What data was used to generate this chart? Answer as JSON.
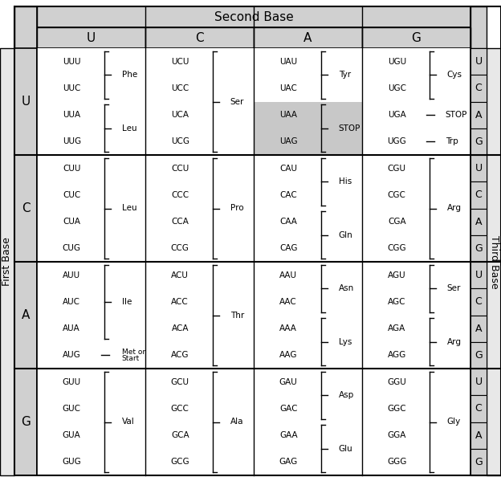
{
  "title": "Second Base",
  "first_base_label": "First Base",
  "third_base_label": "Third Base",
  "second_bases": [
    "U",
    "C",
    "A",
    "G"
  ],
  "first_bases": [
    "U",
    "C",
    "A",
    "G"
  ],
  "third_bases": [
    "U",
    "C",
    "A",
    "G"
  ],
  "codon_data": {
    "UU": [
      {
        "codon": "UUU",
        "aa": "Phe",
        "group": 1
      },
      {
        "codon": "UUC",
        "aa": "Phe",
        "group": 1
      },
      {
        "codon": "UUA",
        "aa": "Leu",
        "group": 2
      },
      {
        "codon": "UUG",
        "aa": "Leu",
        "group": 2
      }
    ],
    "UC": [
      {
        "codon": "UCU",
        "aa": "Ser",
        "group": 1
      },
      {
        "codon": "UCC",
        "aa": "Ser",
        "group": 1
      },
      {
        "codon": "UCA",
        "aa": "Ser",
        "group": 1
      },
      {
        "codon": "UCG",
        "aa": "Ser",
        "group": 1
      }
    ],
    "UA": [
      {
        "codon": "UAU",
        "aa": "Tyr",
        "group": 1
      },
      {
        "codon": "UAC",
        "aa": "Tyr",
        "group": 1
      },
      {
        "codon": "UAA",
        "aa": "STOP",
        "group": 2,
        "highlight": true
      },
      {
        "codon": "UAG",
        "aa": "STOP",
        "group": 2,
        "highlight": true
      }
    ],
    "UG": [
      {
        "codon": "UGU",
        "aa": "Cys",
        "group": 1
      },
      {
        "codon": "UGC",
        "aa": "Cys",
        "group": 1
      },
      {
        "codon": "UGA",
        "aa": "STOP",
        "group": 3,
        "dash": true
      },
      {
        "codon": "UGG",
        "aa": "Trp",
        "group": 4,
        "dash": true
      }
    ],
    "CU": [
      {
        "codon": "CUU",
        "aa": "Leu",
        "group": 1
      },
      {
        "codon": "CUC",
        "aa": "Leu",
        "group": 1
      },
      {
        "codon": "CUA",
        "aa": "Leu",
        "group": 1
      },
      {
        "codon": "CUG",
        "aa": "Leu",
        "group": 1
      }
    ],
    "CC": [
      {
        "codon": "CCU",
        "aa": "Pro",
        "group": 1
      },
      {
        "codon": "CCC",
        "aa": "Pro",
        "group": 1
      },
      {
        "codon": "CCA",
        "aa": "Pro",
        "group": 1
      },
      {
        "codon": "CCG",
        "aa": "Pro",
        "group": 1
      }
    ],
    "CA": [
      {
        "codon": "CAU",
        "aa": "His",
        "group": 1
      },
      {
        "codon": "CAC",
        "aa": "His",
        "group": 1
      },
      {
        "codon": "CAA",
        "aa": "Gln",
        "group": 2
      },
      {
        "codon": "CAG",
        "aa": "Gln",
        "group": 2
      }
    ],
    "CG": [
      {
        "codon": "CGU",
        "aa": "Arg",
        "group": 1
      },
      {
        "codon": "CGC",
        "aa": "Arg",
        "group": 1
      },
      {
        "codon": "CGA",
        "aa": "Arg",
        "group": 1
      },
      {
        "codon": "CGG",
        "aa": "Arg",
        "group": 1
      }
    ],
    "AU": [
      {
        "codon": "AUU",
        "aa": "Ile",
        "group": 1
      },
      {
        "codon": "AUC",
        "aa": "Ile",
        "group": 1
      },
      {
        "codon": "AUA",
        "aa": "Ile",
        "group": 1
      },
      {
        "codon": "AUG",
        "aa": "Met or\nStart",
        "group": 2,
        "dash": true
      }
    ],
    "AC": [
      {
        "codon": "ACU",
        "aa": "Thr",
        "group": 1
      },
      {
        "codon": "ACC",
        "aa": "Thr",
        "group": 1
      },
      {
        "codon": "ACA",
        "aa": "Thr",
        "group": 1
      },
      {
        "codon": "ACG",
        "aa": "Thr",
        "group": 1
      }
    ],
    "AA": [
      {
        "codon": "AAU",
        "aa": "Asn",
        "group": 1
      },
      {
        "codon": "AAC",
        "aa": "Asn",
        "group": 1
      },
      {
        "codon": "AAA",
        "aa": "Lys",
        "group": 2
      },
      {
        "codon": "AAG",
        "aa": "Lys",
        "group": 2
      }
    ],
    "AG": [
      {
        "codon": "AGU",
        "aa": "Ser",
        "group": 1
      },
      {
        "codon": "AGC",
        "aa": "Ser",
        "group": 1
      },
      {
        "codon": "AGA",
        "aa": "Arg",
        "group": 2
      },
      {
        "codon": "AGG",
        "aa": "Arg",
        "group": 2
      }
    ],
    "GU": [
      {
        "codon": "GUU",
        "aa": "Val",
        "group": 1
      },
      {
        "codon": "GUC",
        "aa": "Val",
        "group": 1
      },
      {
        "codon": "GUA",
        "aa": "Val",
        "group": 1
      },
      {
        "codon": "GUG",
        "aa": "Val",
        "group": 1
      }
    ],
    "GC": [
      {
        "codon": "GCU",
        "aa": "Ala",
        "group": 1
      },
      {
        "codon": "GCC",
        "aa": "Ala",
        "group": 1
      },
      {
        "codon": "GCA",
        "aa": "Ala",
        "group": 1
      },
      {
        "codon": "GCG",
        "aa": "Ala",
        "group": 1
      }
    ],
    "GA": [
      {
        "codon": "GAU",
        "aa": "Asp",
        "group": 1
      },
      {
        "codon": "GAC",
        "aa": "Asp",
        "group": 1
      },
      {
        "codon": "GAA",
        "aa": "Glu",
        "group": 2
      },
      {
        "codon": "GAG",
        "aa": "Glu",
        "group": 2
      }
    ],
    "GG": [
      {
        "codon": "GGU",
        "aa": "Gly",
        "group": 1
      },
      {
        "codon": "GGC",
        "aa": "Gly",
        "group": 1
      },
      {
        "codon": "GGA",
        "aa": "Gly",
        "group": 1
      },
      {
        "codon": "GGG",
        "aa": "Gly",
        "group": 1
      }
    ]
  }
}
